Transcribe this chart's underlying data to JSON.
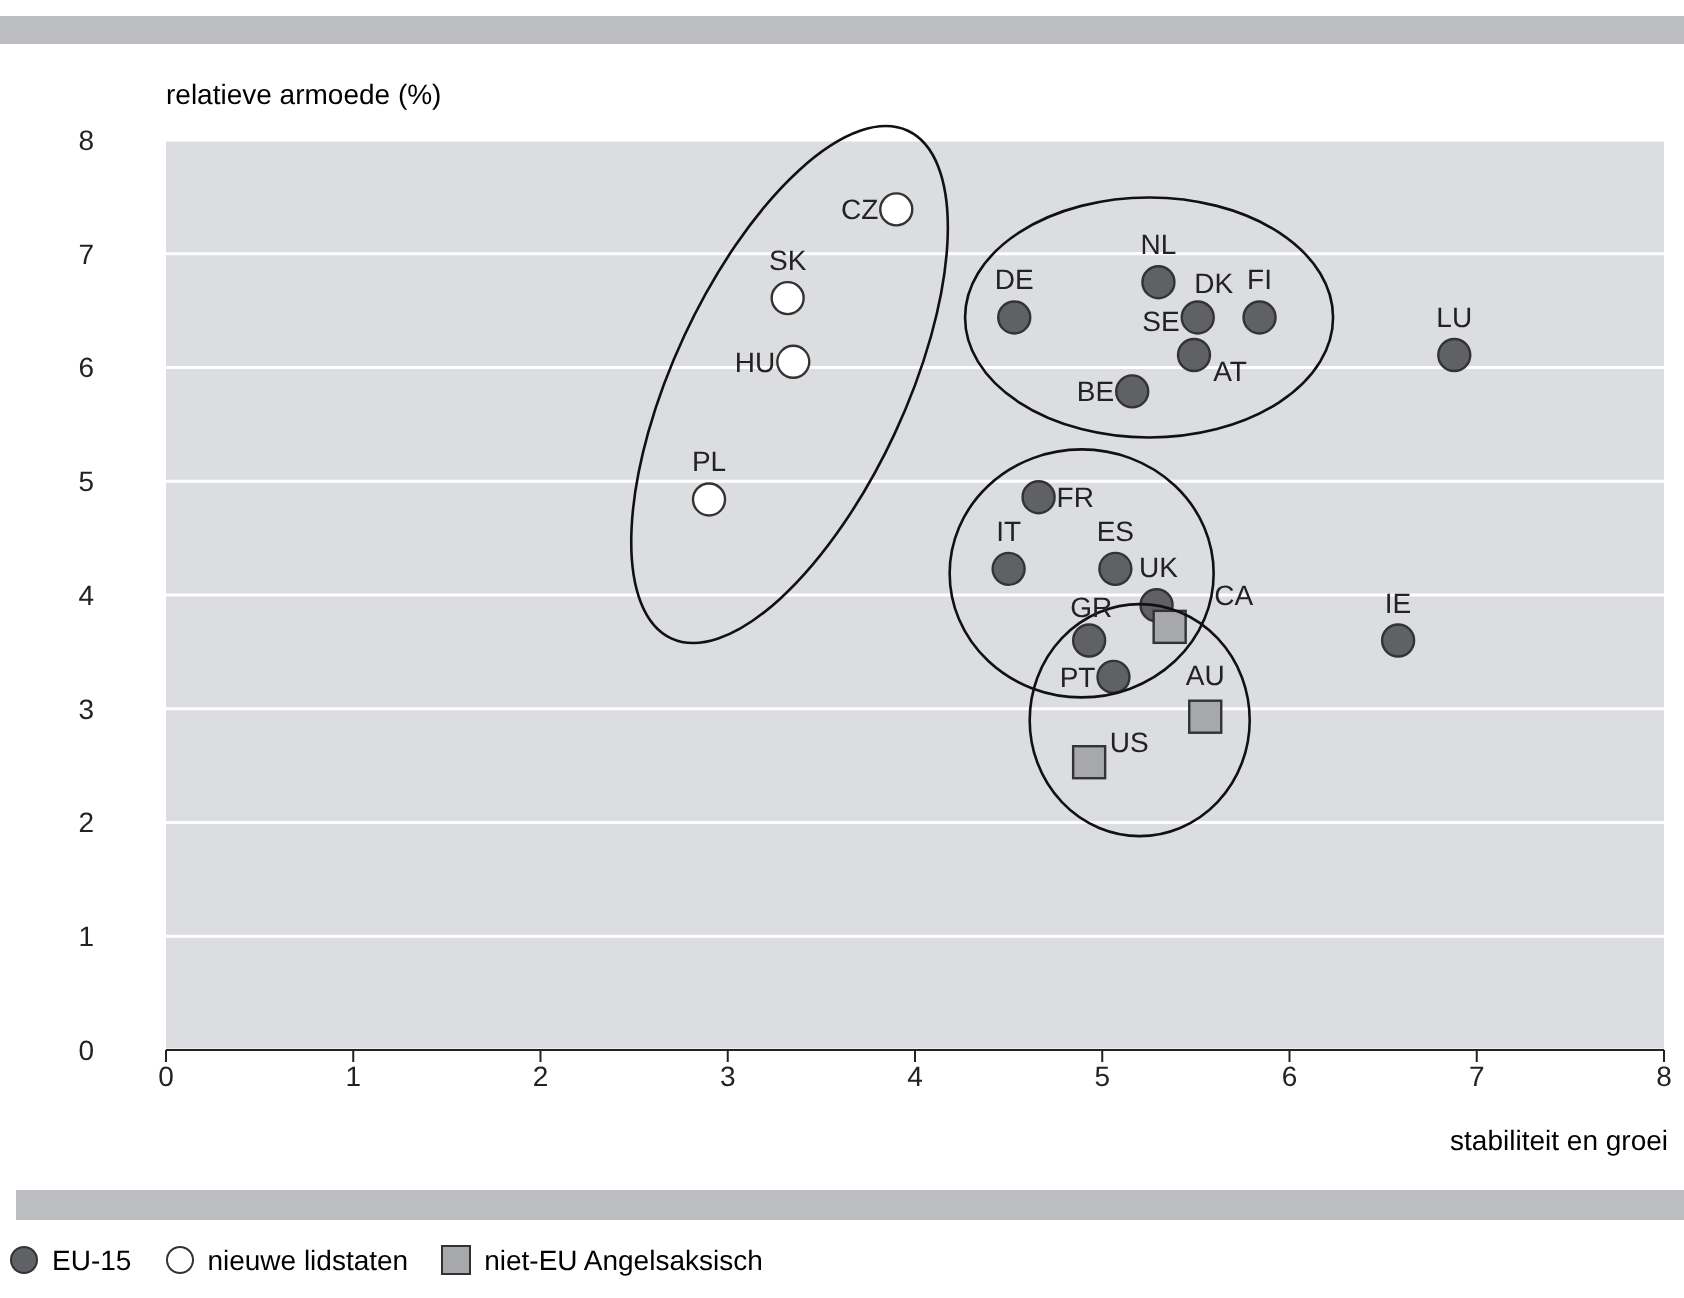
{
  "chart_data": {
    "type": "scatter",
    "ylabel": "relatieve armoede (%)",
    "xlabel": "stabiliteit en groei",
    "xlim": [
      0,
      8
    ],
    "ylim": [
      0,
      8
    ],
    "xticks": [
      0,
      1,
      2,
      3,
      4,
      5,
      6,
      7,
      8
    ],
    "yticks": [
      0,
      1,
      2,
      3,
      4,
      5,
      6,
      7,
      8
    ],
    "grid": "y",
    "legend": "bottom left",
    "series": [
      {
        "name": "EU-15",
        "color": "#606165",
        "marker": "circle",
        "x": [
          4.53,
          5.3,
          5.51,
          null,
          5.84,
          5.49,
          5.16,
          6.88,
          4.66,
          4.5,
          5.07,
          5.29,
          4.93,
          5.06,
          6.58
        ],
        "values": [
          6.44,
          6.75,
          6.44,
          null,
          6.44,
          6.11,
          5.79,
          6.11,
          4.86,
          4.23,
          4.23,
          3.91,
          3.6,
          3.28,
          3.6
        ]
      },
      {
        "name": "nieuwe lidstaten",
        "color": "#ffffff",
        "marker": "circle",
        "x": [
          3.9,
          3.32,
          3.35,
          2.9
        ],
        "values": [
          7.39,
          6.61,
          6.05,
          4.84
        ]
      },
      {
        "name": "niet-EU Angelsaksisch",
        "color": "#a7a8ab",
        "marker": "square",
        "x": [
          5.36,
          5.55,
          4.93
        ],
        "values": [
          3.72,
          2.93,
          2.53
        ]
      }
    ],
    "annotations": [
      {
        "text": "DE",
        "x": 4.53,
        "y": 6.44
      },
      {
        "text": "NL",
        "x": 5.3,
        "y": 6.75
      },
      {
        "text": "DK",
        "x": 5.51,
        "y": 6.44
      },
      {
        "text": "SE",
        "x": 5.51,
        "y": 6.44
      },
      {
        "text": "FI",
        "x": 5.84,
        "y": 6.44
      },
      {
        "text": "AT",
        "x": 5.49,
        "y": 6.11
      },
      {
        "text": "BE",
        "x": 5.16,
        "y": 5.79
      },
      {
        "text": "LU",
        "x": 6.88,
        "y": 6.11
      },
      {
        "text": "FR",
        "x": 4.66,
        "y": 4.86
      },
      {
        "text": "IT",
        "x": 4.5,
        "y": 4.23
      },
      {
        "text": "ES",
        "x": 5.07,
        "y": 4.23
      },
      {
        "text": "UK",
        "x": 5.29,
        "y": 3.91
      },
      {
        "text": "GR",
        "x": 4.93,
        "y": 3.6
      },
      {
        "text": "PT",
        "x": 5.06,
        "y": 3.28
      },
      {
        "text": "IE",
        "x": 6.58,
        "y": 3.6
      },
      {
        "text": "CZ",
        "x": 3.9,
        "y": 7.39
      },
      {
        "text": "SK",
        "x": 3.32,
        "y": 6.61
      },
      {
        "text": "HU",
        "x": 3.35,
        "y": 6.05
      },
      {
        "text": "PL",
        "x": 2.9,
        "y": 4.84
      },
      {
        "text": "CA",
        "x": 5.36,
        "y": 3.72
      },
      {
        "text": "AU",
        "x": 5.55,
        "y": 2.93
      },
      {
        "text": "US",
        "x": 4.93,
        "y": 2.53
      }
    ]
  }
}
